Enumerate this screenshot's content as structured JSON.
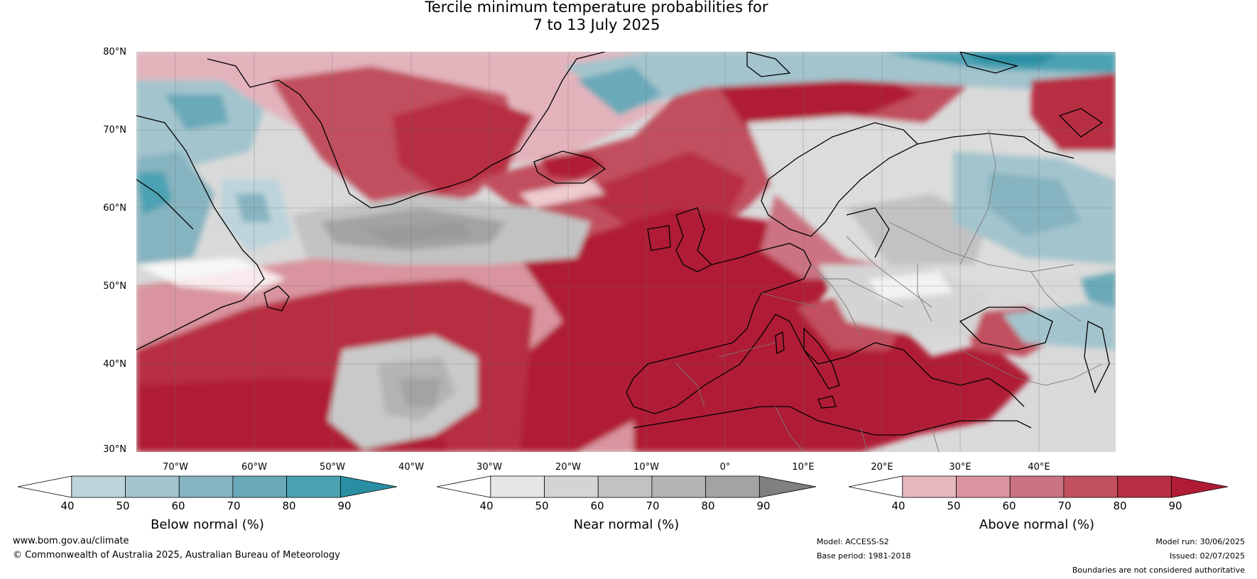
{
  "title": {
    "line1": "Tercile minimum temperature probabilities for",
    "line2": "7 to 13 July 2025"
  },
  "map": {
    "lat_labels": [
      "80°N",
      "70°N",
      "60°N",
      "50°N",
      "40°N",
      "30°N"
    ],
    "lon_labels": [
      "70°W",
      "60°W",
      "50°W",
      "40°W",
      "30°W",
      "20°W",
      "10°W",
      "0°",
      "10°E",
      "20°E",
      "30°E",
      "40°E"
    ]
  },
  "colorbars": [
    {
      "title": "Below normal (%)",
      "ticks": [
        "40",
        "50",
        "60",
        "70",
        "80",
        "90"
      ],
      "colors": [
        "#ffffff",
        "#bdd4db",
        "#a3c4cd",
        "#86b4c0",
        "#6aa9b8",
        "#4ba2b3",
        "#2b8fa3"
      ]
    },
    {
      "title": "Near normal (%)",
      "ticks": [
        "40",
        "50",
        "60",
        "70",
        "80",
        "90"
      ],
      "colors": [
        "#ffffff",
        "#e6e6e6",
        "#d4d4d4",
        "#c2c2c2",
        "#b4b4b4",
        "#a3a3a3",
        "#808080"
      ]
    },
    {
      "title": "Above normal (%)",
      "ticks": [
        "40",
        "50",
        "60",
        "70",
        "80",
        "90"
      ],
      "colors": [
        "#ffffff",
        "#e6b7bf",
        "#d9949f",
        "#cb7382",
        "#c1505f",
        "#b72e43",
        "#b01c35"
      ]
    }
  ],
  "footer": {
    "website": "www.bom.gov.au/climate",
    "copyright": "© Commonwealth of Australia 2025, Australian Bureau of Meteorology",
    "model": "Model: ACCESS-S2",
    "base_period": "Base period: 1981-2018",
    "model_run": "Model run: 30/06/2025",
    "issued": "Issued: 02/07/2025",
    "disclaimer": "Boundaries are not considered authoritative"
  }
}
